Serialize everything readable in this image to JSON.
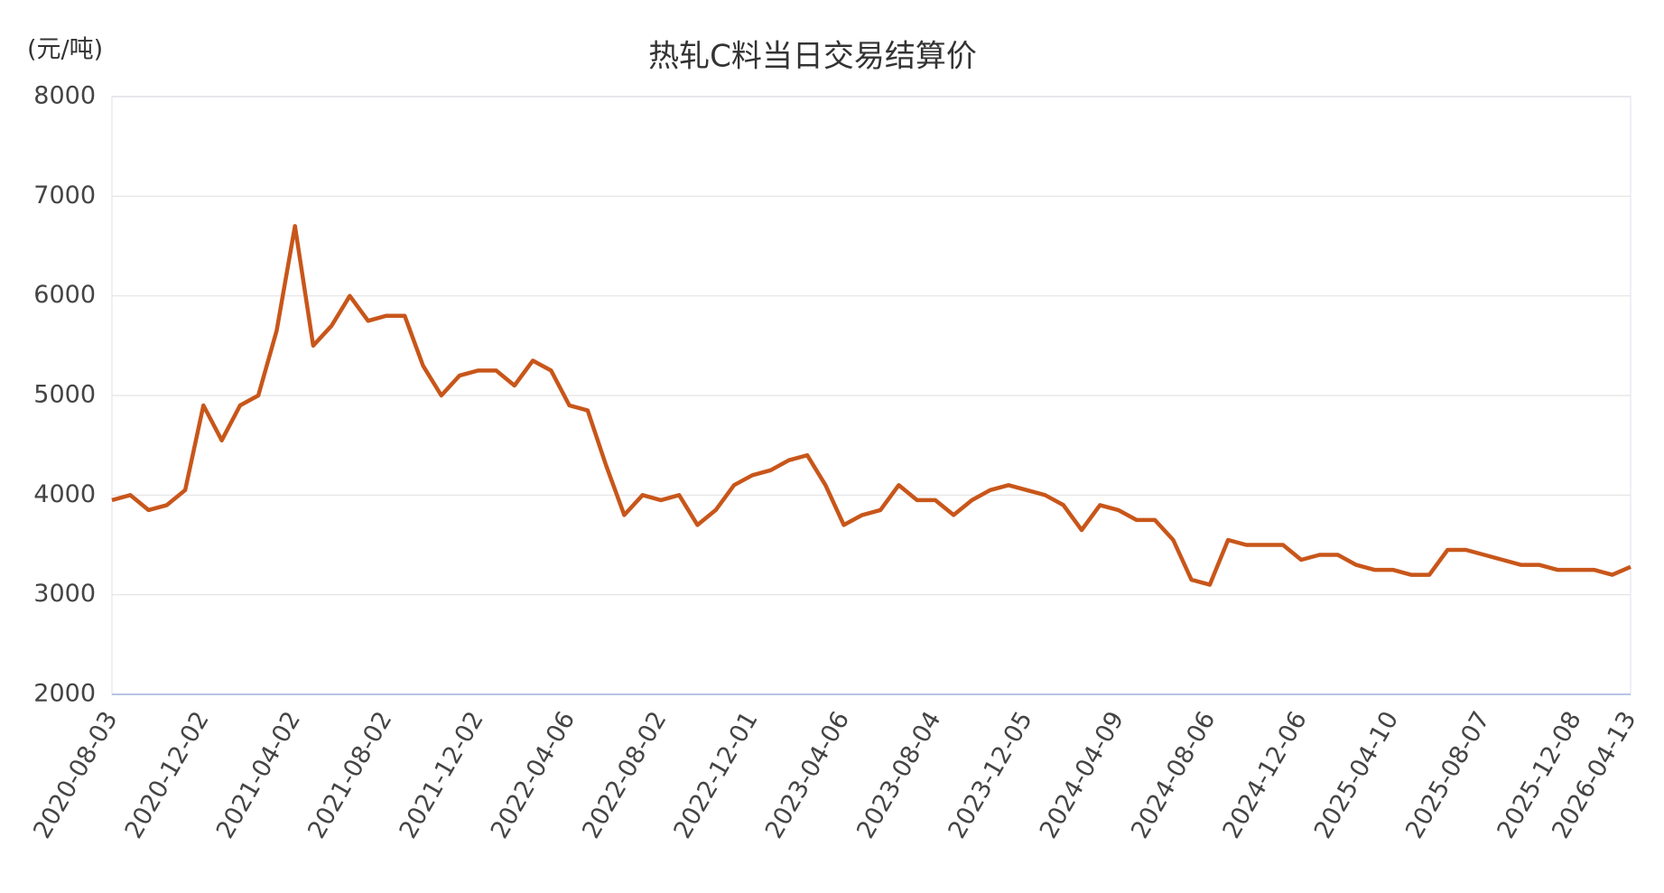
{
  "chart_data": {
    "type": "line",
    "title": "热轧C料当日交易结算价",
    "y_label": "(元/吨)",
    "categories": [
      "2020-08-03",
      null,
      null,
      null,
      null,
      "2020-12-02",
      null,
      null,
      null,
      null,
      "2021-04-02",
      null,
      null,
      null,
      null,
      "2021-08-02",
      null,
      null,
      null,
      null,
      "2021-12-02",
      null,
      null,
      null,
      null,
      "2022-04-06",
      null,
      null,
      null,
      null,
      "2022-08-02",
      null,
      null,
      null,
      null,
      "2022-12-01",
      null,
      null,
      null,
      null,
      "2023-04-06",
      null,
      null,
      null,
      null,
      "2023-08-04",
      null,
      null,
      null,
      null,
      "2023-12-05",
      null,
      null,
      null,
      null,
      "2024-04-09",
      null,
      null,
      null,
      null,
      "2024-08-06",
      null,
      null,
      null,
      null,
      "2024-12-06",
      null,
      null,
      null,
      null,
      "2025-04-10",
      null,
      null,
      null,
      null,
      "2025-08-07",
      null,
      null,
      null,
      null,
      "2025-12-08",
      null,
      null,
      "2026-04-13"
    ],
    "values": [
      3950,
      4000,
      3850,
      3900,
      4050,
      4900,
      4550,
      4900,
      5000,
      5650,
      6700,
      5500,
      5700,
      6000,
      5750,
      5800,
      5800,
      5300,
      5000,
      5200,
      5250,
      5250,
      5100,
      5350,
      5250,
      4900,
      4850,
      4300,
      3800,
      4000,
      3950,
      4000,
      3700,
      3850,
      4100,
      4200,
      4250,
      4350,
      4400,
      4100,
      3700,
      3800,
      3850,
      4100,
      3950,
      3950,
      3800,
      3950,
      4050,
      4100,
      4050,
      4000,
      3900,
      3650,
      3900,
      3850,
      3750,
      3750,
      3550,
      3150,
      3100,
      3550,
      3500,
      3500,
      3500,
      3350,
      3400,
      3400,
      3300,
      3250,
      3250,
      3200,
      3200,
      3450,
      3450,
      3400,
      3350,
      3300,
      3300,
      3250,
      3250,
      3250,
      3200,
      3280
    ],
    "color": "#c8561a",
    "ylim": [
      2000,
      8000
    ],
    "yticks": [
      2000,
      3000,
      4000,
      5000,
      6000,
      7000,
      8000
    ],
    "grid": true
  }
}
